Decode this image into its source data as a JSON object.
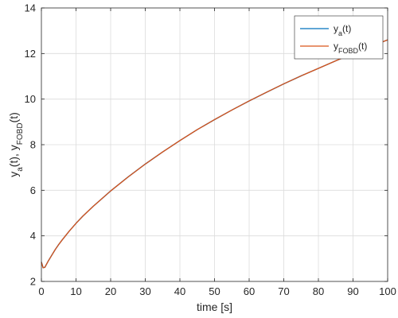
{
  "chart_data": {
    "type": "line",
    "xlabel": "time [s]",
    "ylabel": {
      "parts": [
        {
          "text": "y",
          "sub": "a"
        },
        {
          "text": "(t), y",
          "sub": "FOBD"
        },
        {
          "text": "(t)",
          "sub": ""
        }
      ]
    },
    "xlim": [
      0,
      100
    ],
    "ylim": [
      2,
      14
    ],
    "xticks": [
      "0",
      "10",
      "20",
      "30",
      "40",
      "50",
      "60",
      "70",
      "80",
      "90",
      "100"
    ],
    "yticks": [
      "2",
      "4",
      "6",
      "8",
      "10",
      "12",
      "14"
    ],
    "grid": true,
    "legend_position": "top-right",
    "series": [
      {
        "name": {
          "text": "y",
          "sub": "a",
          "suffix": "(t)"
        },
        "color": "#0072BD",
        "x": [
          0,
          0.5,
          1,
          2,
          3,
          4,
          5,
          6,
          8,
          10,
          12,
          15,
          20,
          25,
          30,
          35,
          40,
          45,
          50,
          55,
          60,
          65,
          70,
          75,
          80,
          85,
          90,
          95,
          100
        ],
        "y": [
          2.85,
          2.6,
          2.62,
          2.9,
          3.15,
          3.4,
          3.62,
          3.82,
          4.2,
          4.55,
          4.87,
          5.3,
          5.97,
          6.58,
          7.15,
          7.68,
          8.18,
          8.66,
          9.1,
          9.52,
          9.92,
          10.3,
          10.67,
          11.02,
          11.35,
          11.68,
          12.0,
          12.3,
          12.6
        ]
      },
      {
        "name": {
          "text": "y",
          "sub": "FOBD",
          "suffix": "(t)"
        },
        "color": "#D95319",
        "x": [
          0,
          0.5,
          1,
          2,
          3,
          4,
          5,
          6,
          8,
          10,
          12,
          15,
          20,
          25,
          30,
          35,
          40,
          45,
          50,
          55,
          60,
          65,
          70,
          75,
          80,
          85,
          90,
          95,
          100
        ],
        "y": [
          2.85,
          2.6,
          2.62,
          2.9,
          3.15,
          3.4,
          3.62,
          3.82,
          4.2,
          4.55,
          4.87,
          5.3,
          5.97,
          6.58,
          7.15,
          7.68,
          8.18,
          8.66,
          9.1,
          9.52,
          9.92,
          10.3,
          10.67,
          11.02,
          11.35,
          11.68,
          12.0,
          12.3,
          12.6
        ]
      }
    ]
  }
}
